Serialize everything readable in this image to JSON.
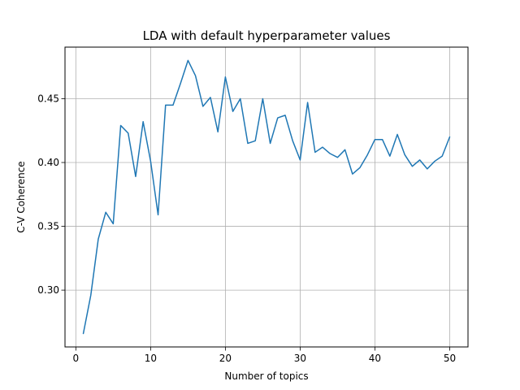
{
  "chart_data": {
    "type": "line",
    "title": "LDA with default hyperparameter values",
    "xlabel": "Number of topics",
    "ylabel": "C-V Coherence",
    "xlim": [
      -1.45,
      52.45
    ],
    "ylim": [
      0.2555,
      0.4904
    ],
    "xticks": [
      0,
      10,
      20,
      30,
      40,
      50
    ],
    "yticks": [
      0.3,
      0.35,
      0.4,
      0.45
    ],
    "ytick_labels": [
      "0.30",
      "0.35",
      "0.40",
      "0.45"
    ],
    "grid": true,
    "line_color": "#1f77b4",
    "series": [
      {
        "x": [
          1,
          2,
          3,
          4,
          5,
          6,
          7,
          8,
          9,
          10,
          11,
          12,
          13,
          14,
          15,
          16,
          17,
          18,
          19,
          20,
          21,
          22,
          23,
          24,
          25,
          26,
          27,
          28,
          29,
          30,
          31,
          32,
          33,
          34,
          35,
          36,
          37,
          38,
          39,
          40,
          41,
          42,
          43,
          44,
          45,
          46,
          47,
          48,
          49,
          50
        ],
        "values": [
          0.266,
          0.296,
          0.34,
          0.361,
          0.352,
          0.429,
          0.423,
          0.389,
          0.432,
          0.401,
          0.359,
          0.445,
          0.445,
          0.462,
          0.48,
          0.468,
          0.444,
          0.451,
          0.424,
          0.467,
          0.44,
          0.45,
          0.415,
          0.417,
          0.45,
          0.415,
          0.435,
          0.437,
          0.417,
          0.402,
          0.447,
          0.408,
          0.412,
          0.407,
          0.404,
          0.41,
          0.391,
          0.396,
          0.406,
          0.418,
          0.418,
          0.405,
          0.422,
          0.406,
          0.397,
          0.402,
          0.395,
          0.401,
          0.405,
          0.42
        ]
      }
    ]
  }
}
